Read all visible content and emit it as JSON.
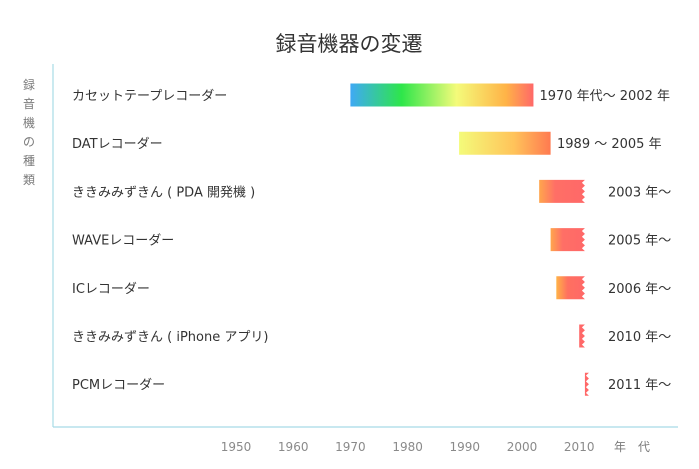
{
  "chart_data": {
    "type": "timeline",
    "title": "録音機器の変遷",
    "ylabel": "録音機の種類",
    "xlabel": "年　代",
    "xlim": [
      1950,
      2015
    ],
    "xticks": [
      1950,
      1960,
      1970,
      1980,
      1990,
      2000,
      2010
    ],
    "rows": [
      {
        "label": "カセットテープレコーダー",
        "start": 1970,
        "end": 2002,
        "period_label": "1970 年代〜 2002 年",
        "ongoing": false
      },
      {
        "label": "DATレコーダー",
        "start": 1989,
        "end": 2005,
        "period_label": "1989 〜 2005 年",
        "ongoing": false
      },
      {
        "label": "ききみみずきん ( PDA 開発機 )",
        "start": 2003,
        "end": 2011,
        "period_label": "2003 年〜",
        "ongoing": true
      },
      {
        "label": "WAVEレコーダー",
        "start": 2005,
        "end": 2011,
        "period_label": "2005 年〜",
        "ongoing": true
      },
      {
        "label": "ICレコーダー",
        "start": 2006,
        "end": 2011,
        "period_label": "2006 年〜",
        "ongoing": true
      },
      {
        "label": "ききみみずきん ( iPhone アプリ)",
        "start": 2010,
        "end": 2011,
        "period_label": "2010 年〜",
        "ongoing": true
      },
      {
        "label": "PCMレコーダー",
        "start": 2011,
        "end": 2011.7,
        "period_label": "2011 年〜",
        "ongoing": true
      }
    ],
    "colors": {
      "axis": "#a8dbe6",
      "bar_end": "#ff6868",
      "gradient": [
        "#3fa9f5",
        "#2ee64a",
        "#f4fb7a",
        "#ffb347",
        "#ff6868"
      ]
    },
    "grid": false,
    "legend": "none"
  }
}
